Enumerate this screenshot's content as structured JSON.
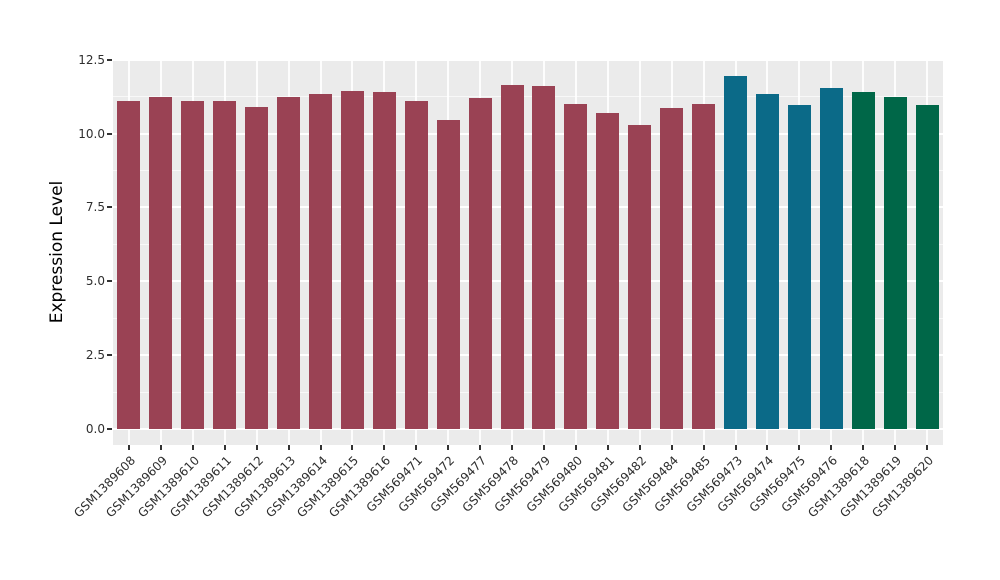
{
  "chart_data": {
    "type": "bar",
    "title": "",
    "xlabel": "",
    "ylabel": "Expression Level",
    "ylim": [
      -0.6,
      12.55
    ],
    "yticks": [
      0.0,
      2.5,
      5.0,
      7.5,
      10.0,
      12.5
    ],
    "ytick_labels": [
      "0.0",
      "2.5",
      "5.0",
      "7.5",
      "10.0",
      "12.5"
    ],
    "yticks_minor": [
      1.25,
      3.75,
      6.25,
      8.75,
      11.25
    ],
    "grid": true,
    "legend_position": "none",
    "panel_background": "#EBEBEB",
    "grid_color": "#FFFFFF",
    "axis_text_color": "#2e2e2e",
    "groups": [
      {
        "name": "group-maroon",
        "color": "#9A4254"
      },
      {
        "name": "group-teal",
        "color": "#0B6A88"
      },
      {
        "name": "group-green",
        "color": "#006748"
      }
    ],
    "bars": [
      {
        "label": "GSM1389608",
        "value": 11.1,
        "group": 0
      },
      {
        "label": "GSM1389609",
        "value": 11.25,
        "group": 0
      },
      {
        "label": "GSM1389610",
        "value": 11.1,
        "group": 0
      },
      {
        "label": "GSM1389611",
        "value": 11.1,
        "group": 0
      },
      {
        "label": "GSM1389612",
        "value": 10.9,
        "group": 0
      },
      {
        "label": "GSM1389613",
        "value": 11.25,
        "group": 0
      },
      {
        "label": "GSM1389614",
        "value": 11.35,
        "group": 0
      },
      {
        "label": "GSM1389615",
        "value": 11.45,
        "group": 0
      },
      {
        "label": "GSM1389616",
        "value": 11.4,
        "group": 0
      },
      {
        "label": "GSM569471",
        "value": 11.1,
        "group": 0
      },
      {
        "label": "GSM569472",
        "value": 10.45,
        "group": 0
      },
      {
        "label": "GSM569477",
        "value": 11.2,
        "group": 0
      },
      {
        "label": "GSM569478",
        "value": 11.65,
        "group": 0
      },
      {
        "label": "GSM569479",
        "value": 11.6,
        "group": 0
      },
      {
        "label": "GSM569480",
        "value": 11.0,
        "group": 0
      },
      {
        "label": "GSM569481",
        "value": 10.7,
        "group": 0
      },
      {
        "label": "GSM569482",
        "value": 10.3,
        "group": 0
      },
      {
        "label": "GSM569484",
        "value": 10.85,
        "group": 0
      },
      {
        "label": "GSM569485",
        "value": 11.0,
        "group": 0
      },
      {
        "label": "GSM569473",
        "value": 11.95,
        "group": 1
      },
      {
        "label": "GSM569474",
        "value": 11.35,
        "group": 1
      },
      {
        "label": "GSM569475",
        "value": 10.95,
        "group": 1
      },
      {
        "label": "GSM569476",
        "value": 11.55,
        "group": 1
      },
      {
        "label": "GSM1389618",
        "value": 11.4,
        "group": 2
      },
      {
        "label": "GSM1389619",
        "value": 11.25,
        "group": 2
      },
      {
        "label": "GSM1389620",
        "value": 10.95,
        "group": 2
      }
    ]
  }
}
